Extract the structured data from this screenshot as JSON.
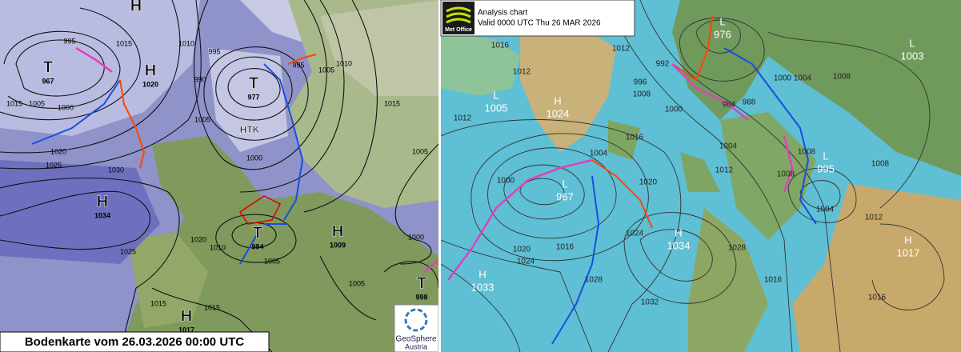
{
  "left": {
    "title": "Bodenkarte vom 26.03.2026 00:00 UTC",
    "logo": [
      "GeoSphere",
      "Austria"
    ],
    "centers": [
      {
        "symbol": "T",
        "value": 967
      },
      {
        "symbol": "H"
      },
      {
        "symbol": "H",
        "value": 1020
      },
      {
        "symbol": "T",
        "value": 977
      },
      {
        "symbol": "HTK"
      },
      {
        "symbol": "H",
        "value": 1034
      },
      {
        "symbol": "T",
        "value": 994
      },
      {
        "symbol": "H",
        "value": 1009
      },
      {
        "symbol": "H",
        "value": 1017
      },
      {
        "symbol": "T",
        "value": 998
      }
    ],
    "isobars": [
      995,
      1015,
      1005,
      1000,
      1015,
      1020,
      1025,
      1030,
      1010,
      995,
      990,
      1005,
      1000,
      995,
      1005,
      1010,
      1015,
      1005,
      1025,
      1020,
      1010,
      1005,
      1000,
      1005,
      1015,
      1015
    ]
  },
  "right": {
    "title": "Analysis chart",
    "valid": "Valid 0000 UTC Thu 26 MAR 2026",
    "logo": "Met Office",
    "centers": [
      {
        "symbol": "L",
        "value": 976
      },
      {
        "symbol": "L",
        "value": 1003
      },
      {
        "symbol": "L",
        "value": 1005
      },
      {
        "symbol": "H",
        "value": 1024
      },
      {
        "symbol": "L",
        "value": 967
      },
      {
        "symbol": "L",
        "value": 995
      },
      {
        "symbol": "H",
        "value": 1034
      },
      {
        "symbol": "H",
        "value": 1033
      },
      {
        "symbol": "H",
        "value": 1017
      }
    ],
    "isobars": [
      1016,
      1012,
      1012,
      1012,
      1008,
      1000,
      992,
      996,
      1004,
      1008,
      1000,
      1004,
      1016,
      1008,
      1004,
      1000,
      1020,
      1024,
      1016,
      1028,
      1032,
      1024,
      1028,
      1020,
      1016,
      1012,
      1008,
      1004,
      1012,
      1016,
      1008,
      984,
      988
    ]
  }
}
